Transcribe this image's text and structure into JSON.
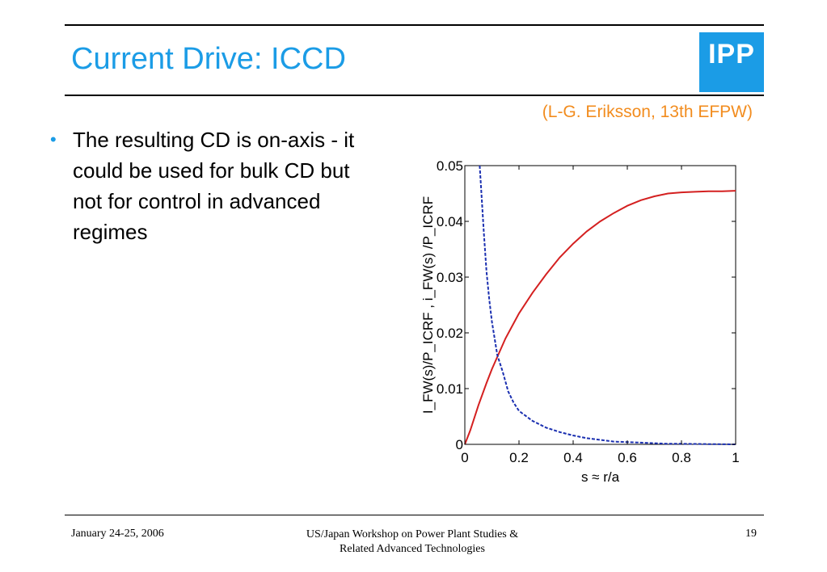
{
  "slide": {
    "title": "Current Drive: ICCD",
    "logo_text": "IPP",
    "citation": "(L-G. Eriksson, 13th EFPW)",
    "bullet_symbol": "•",
    "bullet": "The resulting CD is on-axis - it could be used for bulk CD but not for control in advanced regimes"
  },
  "footer": {
    "date": "January 24-25, 2006",
    "workshop_line1": "US/Japan Workshop on Power Plant Studies &",
    "workshop_line2": "Related Advanced Technologies",
    "page": "19"
  },
  "colors": {
    "title": "#1b9ce6",
    "citation": "#f28c1e",
    "solid_series": "#d42020",
    "dashed_series": "#1a2fb0"
  },
  "chart_data": {
    "type": "line",
    "xlabel": "s ≈ r/a",
    "ylabel": "I_FW(s)/P_ICRF , i_FW(s) /P_ICRF",
    "xlim": [
      0,
      1
    ],
    "ylim": [
      0,
      0.05
    ],
    "x_ticks": [
      "0",
      "0.2",
      "0.4",
      "0.6",
      "0.8",
      "1"
    ],
    "y_ticks": [
      "0",
      "0.01",
      "0.02",
      "0.03",
      "0.04",
      "0.05"
    ],
    "grid": false,
    "series": [
      {
        "style": "solid",
        "color": "#d42020",
        "x": [
          0,
          0.02,
          0.05,
          0.08,
          0.1,
          0.15,
          0.2,
          0.25,
          0.3,
          0.35,
          0.4,
          0.45,
          0.5,
          0.55,
          0.6,
          0.65,
          0.7,
          0.75,
          0.8,
          0.85,
          0.9,
          0.95,
          1.0
        ],
        "y": [
          0,
          0.0025,
          0.007,
          0.011,
          0.0135,
          0.019,
          0.0235,
          0.0272,
          0.0305,
          0.0335,
          0.036,
          0.0382,
          0.04,
          0.0415,
          0.0428,
          0.0438,
          0.0445,
          0.045,
          0.0452,
          0.0453,
          0.0454,
          0.0454,
          0.0455
        ]
      },
      {
        "style": "dashed",
        "color": "#1a2fb0",
        "x": [
          0.055,
          0.06,
          0.07,
          0.08,
          0.09,
          0.1,
          0.12,
          0.14,
          0.16,
          0.18,
          0.2,
          0.25,
          0.3,
          0.35,
          0.4,
          0.45,
          0.5,
          0.55,
          0.6,
          0.65,
          0.7,
          0.75,
          0.8,
          0.9,
          1.0
        ],
        "y": [
          0.05,
          0.046,
          0.038,
          0.031,
          0.026,
          0.022,
          0.016,
          0.013,
          0.0095,
          0.0075,
          0.006,
          0.0042,
          0.003,
          0.0022,
          0.0016,
          0.0011,
          0.0008,
          0.0005,
          0.0004,
          0.0003,
          0.0002,
          0.0001,
          0.0001,
          5e-05,
          0.0
        ]
      }
    ]
  }
}
